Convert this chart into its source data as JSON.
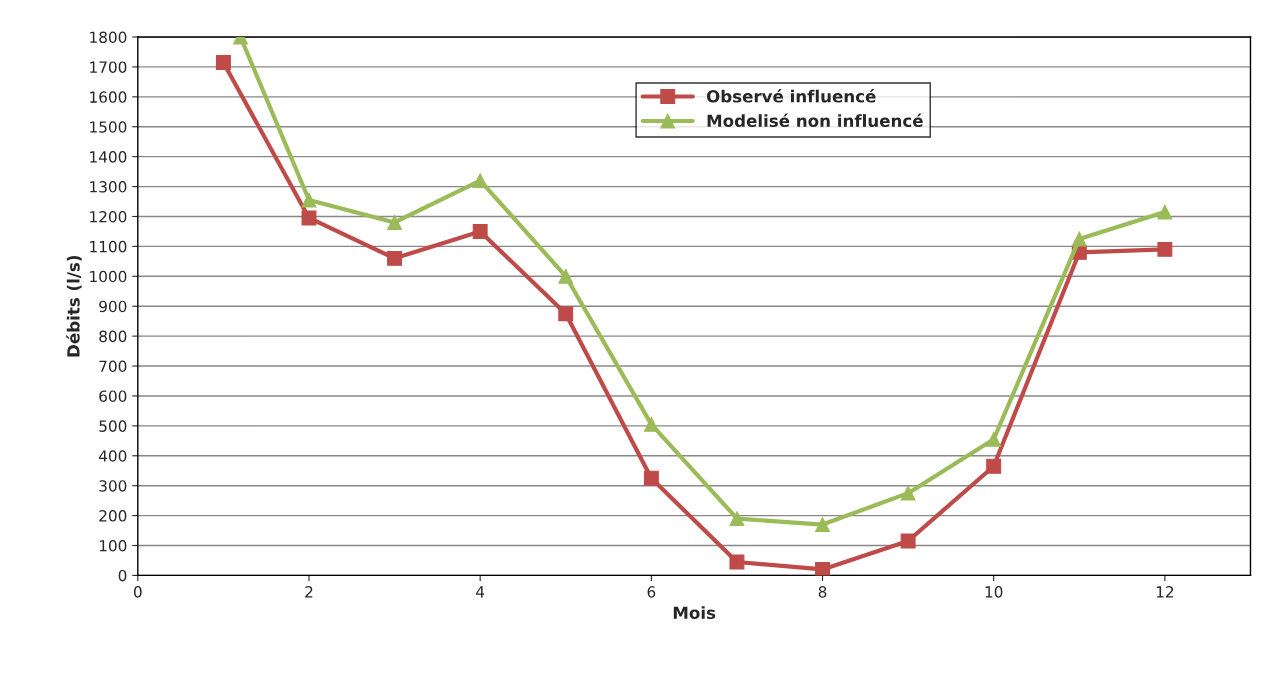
{
  "chart_data": {
    "type": "line",
    "xlabel": "Mois",
    "ylabel": "Débits (l/s)",
    "x": [
      1,
      2,
      3,
      4,
      5,
      6,
      7,
      8,
      9,
      10,
      11,
      12
    ],
    "series": [
      {
        "name": "Observé influencé",
        "color": "#be4b48",
        "marker": "square",
        "values": [
          1715,
          1195,
          1060,
          1150,
          875,
          325,
          45,
          20,
          115,
          365,
          1080,
          1090
        ]
      },
      {
        "name": "Modelisé non influencé",
        "color": "#9bbb59",
        "marker": "triangle",
        "x": [
          1.2,
          2,
          3,
          4,
          5,
          6,
          7,
          8,
          9,
          10,
          11,
          12
        ],
        "values": [
          1800,
          1255,
          1180,
          1320,
          1000,
          505,
          190,
          170,
          275,
          455,
          1125,
          1215
        ]
      }
    ],
    "xlim": [
      0,
      13
    ],
    "xticks": [
      0,
      2,
      4,
      6,
      8,
      10,
      12
    ],
    "ylim": [
      0,
      1800
    ],
    "yticks": [
      0,
      100,
      200,
      300,
      400,
      500,
      600,
      700,
      800,
      900,
      1000,
      1100,
      1200,
      1300,
      1400,
      1500,
      1600,
      1700,
      1800
    ],
    "grid": "y",
    "legend": "top center",
    "line_style": "solid"
  }
}
